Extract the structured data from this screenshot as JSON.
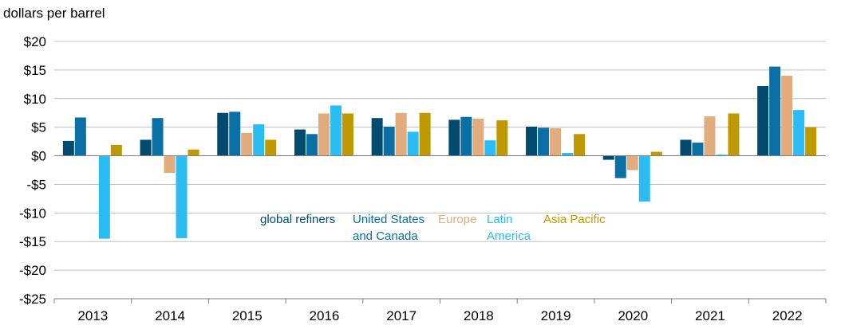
{
  "chart_data": {
    "type": "bar",
    "title": "",
    "ylabel": "dollars per barrel",
    "xlabel": "",
    "categories": [
      "2013",
      "2014",
      "2015",
      "2016",
      "2017",
      "2018",
      "2019",
      "2020",
      "2021",
      "2022"
    ],
    "ylim": [
      -25,
      20
    ],
    "yticks": [
      20,
      15,
      10,
      5,
      0,
      -5,
      -10,
      -15,
      -20,
      -25
    ],
    "ytick_labels": [
      "$20",
      "$15",
      "$10",
      "$5",
      "$0",
      "-$5",
      "-$10",
      "-$15",
      "-$20",
      "-$25"
    ],
    "grid": true,
    "series": [
      {
        "name": "global refiners",
        "legend_lines": [
          "global refiners"
        ],
        "color": "#004b6e",
        "values": [
          2.6,
          2.8,
          7.5,
          4.6,
          6.6,
          6.3,
          5.1,
          -0.7,
          2.8,
          12.2
        ]
      },
      {
        "name": "United States and Canada",
        "legend_lines": [
          "United States",
          "and Canada"
        ],
        "color": "#0a6fa5",
        "values": [
          6.7,
          6.6,
          7.7,
          3.8,
          5.1,
          6.8,
          4.9,
          -3.9,
          2.3,
          15.6
        ]
      },
      {
        "name": "Europe",
        "legend_lines": [
          "Europe"
        ],
        "color": "#e2ac7c",
        "values": [
          0,
          -3.0,
          4.0,
          7.4,
          7.5,
          6.5,
          4.8,
          -2.5,
          6.9,
          14.0
        ]
      },
      {
        "name": "Latin America",
        "legend_lines": [
          "Latin",
          "America"
        ],
        "color": "#2bbcf3",
        "values": [
          -14.5,
          -14.4,
          5.5,
          8.8,
          4.2,
          2.7,
          0.5,
          -8.0,
          0.2,
          8.0
        ]
      },
      {
        "name": "Asia Pacific",
        "legend_lines": [
          "Asia Pacific"
        ],
        "color": "#bf9900",
        "values": [
          1.9,
          1.1,
          2.8,
          7.4,
          7.5,
          6.2,
          3.8,
          0.7,
          7.4,
          5.0
        ]
      }
    ]
  }
}
